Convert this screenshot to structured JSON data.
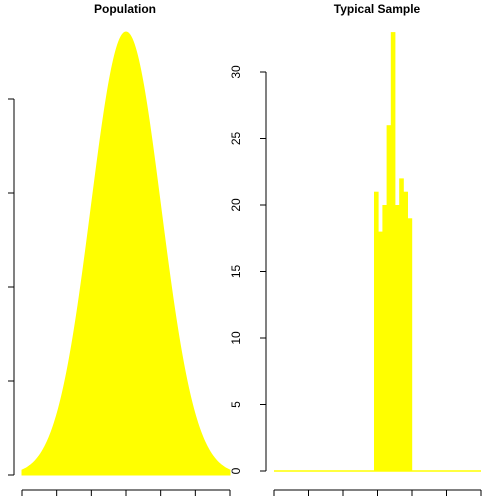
{
  "colors": {
    "fill": "#ffff00",
    "axis": "#000000"
  },
  "chart_data": [
    {
      "type": "area",
      "title": "Population",
      "xlabel": "",
      "ylabel": "",
      "y_tick_labels_visible": false,
      "x_tick_labels_visible": false,
      "curve": "normal-density",
      "x_ticks": 7,
      "y_ticks": 5
    },
    {
      "type": "bar",
      "title": "Typical Sample",
      "xlabel": "",
      "ylabel": "",
      "ylim": [
        0,
        33
      ],
      "y_ticks": [
        0,
        5,
        10,
        15,
        20,
        25,
        30
      ],
      "x_ticks": 7,
      "bins": [
        {
          "value": 21
        },
        {
          "value": 18
        },
        {
          "value": 20
        },
        {
          "value": 26
        },
        {
          "value": 33
        },
        {
          "value": 20
        },
        {
          "value": 22
        },
        {
          "value": 21
        },
        {
          "value": 19
        }
      ]
    }
  ]
}
